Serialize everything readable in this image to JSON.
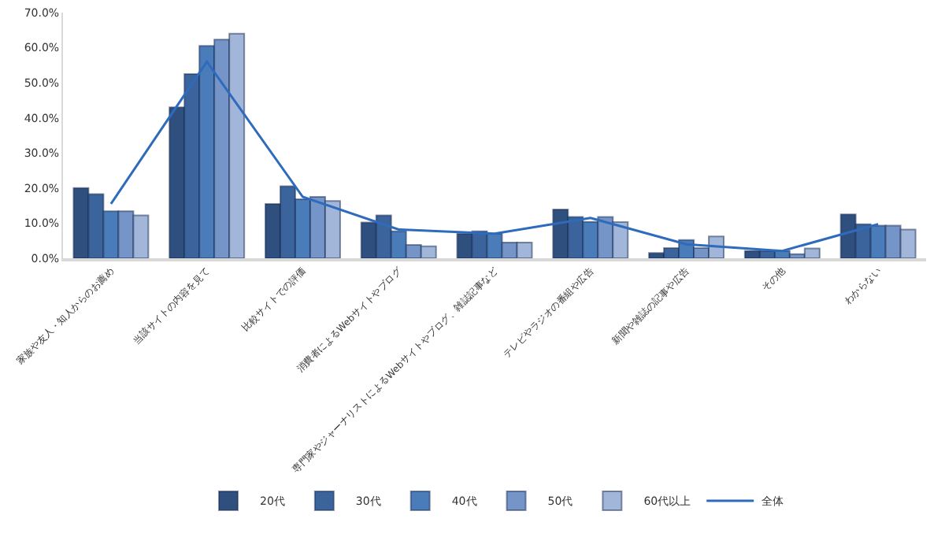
{
  "chart_data": {
    "type": "bar",
    "categories": [
      "家族や友人・知人からのお薦め",
      "当該サイトの内容を見て",
      "比較サイトでの評価",
      "消費者によるWebサイトやブログ",
      "専門家やジャーナリストによるWebサイトやブログ、雑誌記事など",
      "テレビやラジオの番組や広告",
      "新聞や雑誌の記事や広告",
      "その他",
      "わからない"
    ],
    "series": [
      {
        "name": "20代",
        "color": "#2f4f7f",
        "values": [
          20.0,
          43.0,
          15.5,
          10.2,
          7.0,
          13.9,
          1.5,
          2.1,
          12.5
        ]
      },
      {
        "name": "30代",
        "color": "#3b649c",
        "values": [
          18.3,
          52.5,
          20.5,
          12.2,
          7.7,
          11.8,
          2.9,
          2.1,
          9.7
        ]
      },
      {
        "name": "40代",
        "color": "#4a7cba",
        "values": [
          13.4,
          60.5,
          16.8,
          7.7,
          7.0,
          10.4,
          5.2,
          2.1,
          9.3
        ]
      },
      {
        "name": "50代",
        "color": "#7595c8",
        "values": [
          13.4,
          62.3,
          17.5,
          3.8,
          4.5,
          11.8,
          2.9,
          1.2,
          9.3
        ]
      },
      {
        "name": "60代以上",
        "color": "#a2b6d9",
        "values": [
          12.2,
          64.0,
          16.3,
          3.4,
          4.5,
          10.3,
          6.2,
          2.8,
          8.2
        ]
      },
      {
        "name": "全体",
        "type": "line",
        "color": "#2e6bbd",
        "values": [
          15.5,
          56.0,
          17.5,
          8.2,
          7.0,
          11.5,
          4.0,
          2.1,
          9.7
        ]
      }
    ],
    "ylim": [
      0,
      70
    ],
    "yticks": [
      {
        "value": 0,
        "label": "0.0%"
      },
      {
        "value": 10,
        "label": "10.0%"
      },
      {
        "value": 20,
        "label": "20.0%"
      },
      {
        "value": 30,
        "label": "30.0%"
      },
      {
        "value": 40,
        "label": "40.0%"
      },
      {
        "value": 50,
        "label": "50.0%"
      },
      {
        "value": 60,
        "label": "60.0%"
      },
      {
        "value": 70,
        "label": "70.0%"
      }
    ],
    "grid": false,
    "legend": "bottom",
    "marker": "none",
    "line_style": "solid"
  }
}
